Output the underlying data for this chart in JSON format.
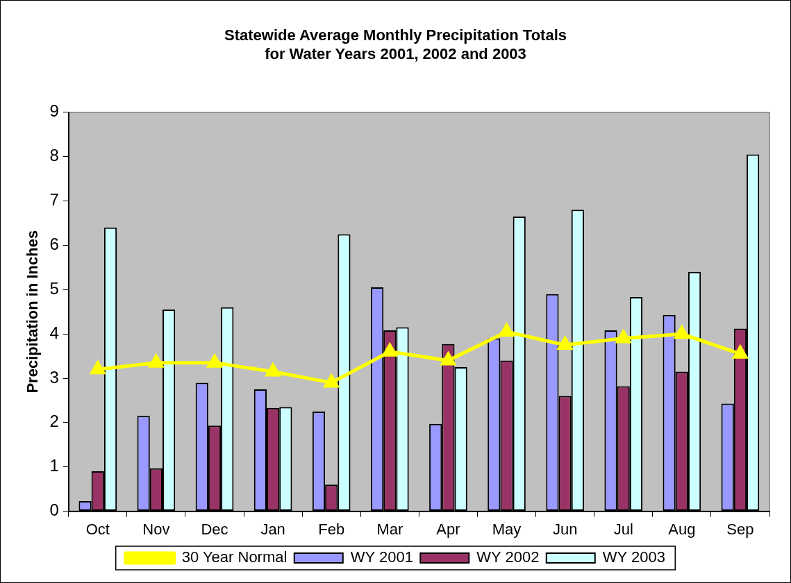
{
  "chart_data": {
    "type": "bar",
    "title": "Statewide Average Monthly Precipitation Totals\nfor Water Years 2001, 2002 and 2003",
    "ylabel": "Precipitation in Inches",
    "categories": [
      "Oct",
      "Nov",
      "Dec",
      "Jan",
      "Feb",
      "Mar",
      "Apr",
      "May",
      "Jun",
      "Jul",
      "Aug",
      "Sep"
    ],
    "series": [
      {
        "name": "WY 2001",
        "color": "#9999ff",
        "values": [
          0.23,
          2.15,
          2.9,
          2.75,
          2.25,
          5.05,
          1.97,
          3.9,
          4.9,
          4.08,
          4.43,
          2.43
        ]
      },
      {
        "name": "WY 2002",
        "color": "#993366",
        "values": [
          0.9,
          0.97,
          1.93,
          2.33,
          0.6,
          4.08,
          3.77,
          3.4,
          2.6,
          2.82,
          3.15,
          4.12
        ]
      },
      {
        "name": "WY 2003",
        "color": "#ccffff",
        "values": [
          6.4,
          4.55,
          4.6,
          2.35,
          6.25,
          4.15,
          3.25,
          6.65,
          6.8,
          4.83,
          5.4,
          8.05
        ]
      },
      {
        "name": "30 Year Normal",
        "type": "line",
        "color": "#ffff00",
        "marker": "triangle",
        "values": [
          3.2,
          3.35,
          3.35,
          3.15,
          2.9,
          3.6,
          3.4,
          4.05,
          3.75,
          3.9,
          4.0,
          3.55
        ]
      }
    ],
    "ylim": [
      0,
      9
    ],
    "yticks": [
      0,
      1,
      2,
      3,
      4,
      5,
      6,
      7,
      8,
      9
    ],
    "grid": false,
    "legend": "bottom"
  }
}
